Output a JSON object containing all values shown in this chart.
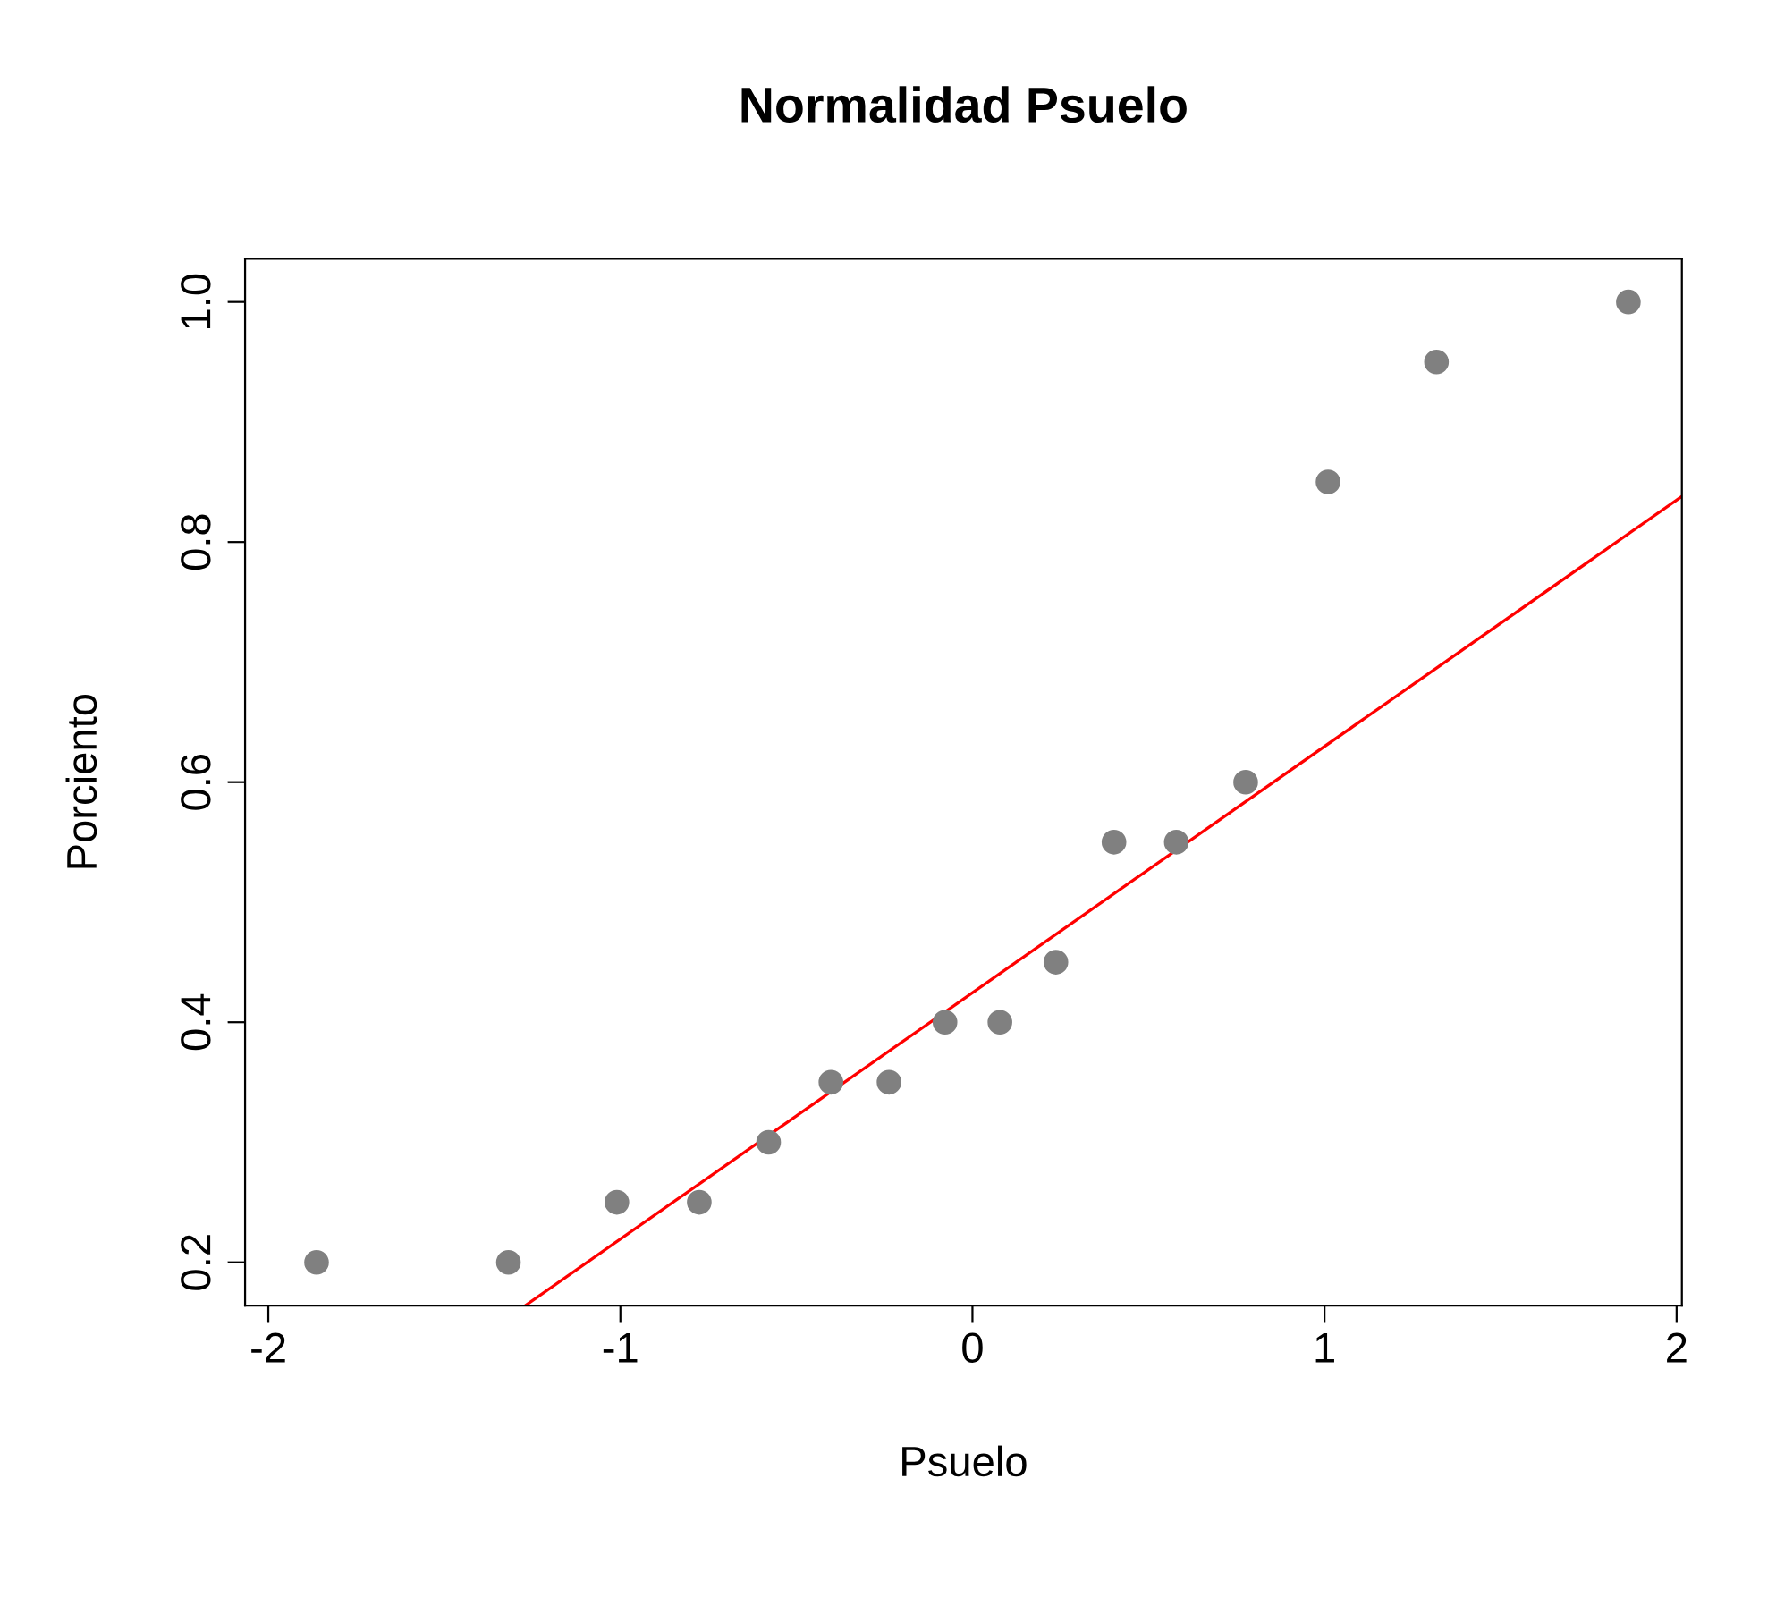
{
  "chart_data": {
    "type": "scatter",
    "title": "Normalidad Psuelo",
    "xlabel": "Psuelo",
    "ylabel": "Porciento",
    "series": [
      {
        "color": "#808080",
        "marker": "circle",
        "x": [
          -1.863,
          -1.318,
          -1.01,
          -0.776,
          -0.579,
          -0.402,
          -0.237,
          -0.078,
          0.078,
          0.237,
          0.402,
          0.579,
          0.776,
          1.01,
          1.318,
          1.863
        ],
        "values": [
          0.2,
          0.2,
          0.25,
          0.25,
          0.3,
          0.35,
          0.35,
          0.4,
          0.4,
          0.45,
          0.55,
          0.55,
          0.6,
          0.85,
          0.95,
          1.0
        ]
      },
      {
        "type": "line",
        "color": "#ff0000",
        "marker": "none",
        "line_style": "solid",
        "x": [
          -1.27,
          2.015
        ],
        "values": [
          0.164,
          0.838
        ]
      }
    ],
    "xlim": [
      -2.066,
      2.015
    ],
    "ylim": [
      0.164,
      1.036
    ],
    "xticks": [
      -2,
      -1,
      0,
      1,
      2
    ],
    "yticks": [
      {
        "value": 0.2,
        "label": "0.2"
      },
      {
        "value": 0.4,
        "label": "0.4"
      },
      {
        "value": 0.6,
        "label": "0.6"
      },
      {
        "value": 0.8,
        "label": "0.8"
      },
      {
        "value": 1.0,
        "label": "1.0"
      }
    ],
    "grid": false,
    "legend": false
  }
}
